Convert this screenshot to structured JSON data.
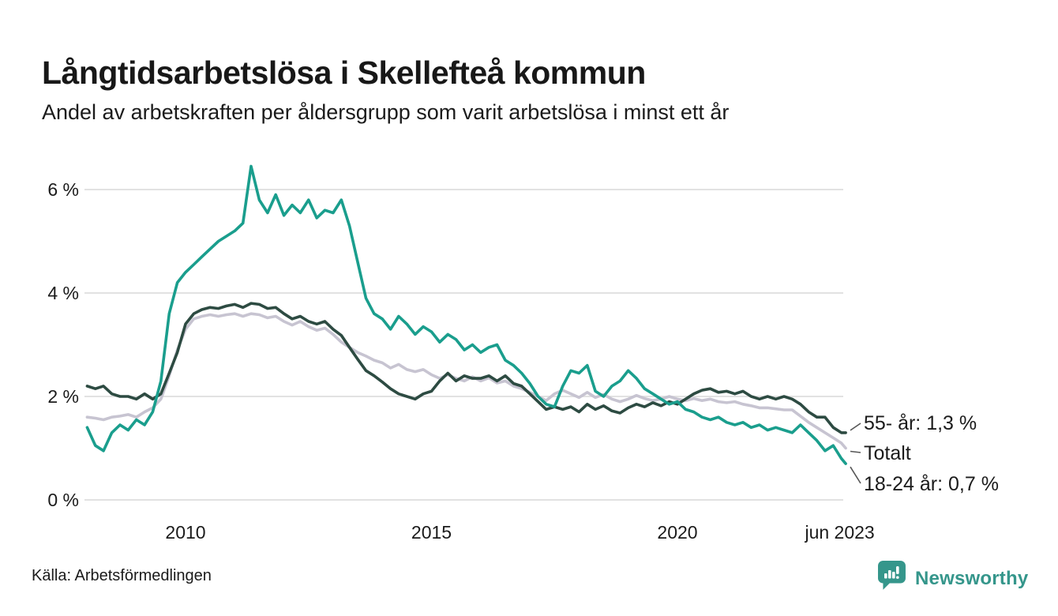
{
  "source": {
    "label": "Källa: Arbetsförmedlingen"
  },
  "logo": {
    "text": "Newsworthy"
  },
  "annotations": [
    {
      "series": "55- år",
      "label": "55- år: 1,3 %"
    },
    {
      "series": "Totalt",
      "label": "Totalt"
    },
    {
      "series": "18-24 år",
      "label": "18-24 år: 0,7 %"
    }
  ],
  "colors": {
    "teal_line": "#1a9e8d",
    "dark_line": "#2d4b42",
    "gray_line": "#c7c4d1",
    "gridline": "#e2e2e2",
    "connector": "#555555",
    "text": "#1b1b1b",
    "logo_teal": "#35968b"
  },
  "chart_data": {
    "type": "line",
    "title": "Långtidsarbetslösa i Skellefteå kommun",
    "subtitle": "Andel av arbetskraften per åldersgrupp som varit arbetslösa i minst ett år",
    "xlabel": "",
    "ylabel": "",
    "unit": "%",
    "grid": "horizontal",
    "legend_position": "end-of-line-labels",
    "ylim": [
      0,
      6.8
    ],
    "xlim": [
      2008.0,
      2023.42
    ],
    "y_ticks": [
      {
        "label": "6 %",
        "value": 6
      },
      {
        "label": "4 %",
        "value": 4
      },
      {
        "label": "2 %",
        "value": 2
      },
      {
        "label": "0 %",
        "value": 0
      }
    ],
    "x_ticks": [
      {
        "label": "2010",
        "value": 2010
      },
      {
        "label": "2015",
        "value": 2015
      },
      {
        "label": "2020",
        "value": 2020
      },
      {
        "label": "jun 2023",
        "value": 2023.3
      }
    ],
    "x": [
      2008.0,
      2008.167,
      2008.333,
      2008.5,
      2008.667,
      2008.833,
      2009.0,
      2009.167,
      2009.333,
      2009.5,
      2009.667,
      2009.833,
      2010.0,
      2010.167,
      2010.333,
      2010.5,
      2010.667,
      2010.833,
      2011.0,
      2011.167,
      2011.333,
      2011.5,
      2011.667,
      2011.833,
      2012.0,
      2012.167,
      2012.333,
      2012.5,
      2012.667,
      2012.833,
      2013.0,
      2013.167,
      2013.333,
      2013.5,
      2013.667,
      2013.833,
      2014.0,
      2014.167,
      2014.333,
      2014.5,
      2014.667,
      2014.833,
      2015.0,
      2015.167,
      2015.333,
      2015.5,
      2015.667,
      2015.833,
      2016.0,
      2016.167,
      2016.333,
      2016.5,
      2016.667,
      2016.833,
      2017.0,
      2017.167,
      2017.333,
      2017.5,
      2017.667,
      2017.833,
      2018.0,
      2018.167,
      2018.333,
      2018.5,
      2018.667,
      2018.833,
      2019.0,
      2019.167,
      2019.333,
      2019.5,
      2019.667,
      2019.833,
      2020.0,
      2020.167,
      2020.333,
      2020.5,
      2020.667,
      2020.833,
      2021.0,
      2021.167,
      2021.333,
      2021.5,
      2021.667,
      2021.833,
      2022.0,
      2022.167,
      2022.333,
      2022.5,
      2022.667,
      2022.833,
      2023.0,
      2023.167,
      2023.333,
      2023.42
    ],
    "series": [
      {
        "name": "18-24 år",
        "id": "18-24",
        "color": "#1a9e8d",
        "end_label": "18-24 år: 0,7 %",
        "end_value": 0.7,
        "values": [
          1.4,
          1.05,
          0.95,
          1.3,
          1.45,
          1.35,
          1.55,
          1.45,
          1.7,
          2.3,
          3.6,
          4.2,
          4.4,
          4.55,
          4.7,
          4.85,
          5.0,
          5.1,
          5.2,
          5.35,
          6.45,
          5.8,
          5.55,
          5.9,
          5.5,
          5.7,
          5.55,
          5.8,
          5.45,
          5.6,
          5.55,
          5.8,
          5.3,
          4.6,
          3.9,
          3.6,
          3.5,
          3.3,
          3.55,
          3.4,
          3.2,
          3.35,
          3.25,
          3.05,
          3.2,
          3.1,
          2.9,
          3.0,
          2.85,
          2.95,
          3.0,
          2.7,
          2.6,
          2.45,
          2.25,
          2.0,
          1.85,
          1.8,
          2.2,
          2.5,
          2.45,
          2.6,
          2.1,
          2.0,
          2.2,
          2.3,
          2.5,
          2.35,
          2.15,
          2.05,
          1.95,
          1.85,
          1.9,
          1.75,
          1.7,
          1.6,
          1.55,
          1.6,
          1.5,
          1.45,
          1.5,
          1.4,
          1.45,
          1.35,
          1.4,
          1.35,
          1.3,
          1.45,
          1.3,
          1.15,
          0.95,
          1.05,
          0.8,
          0.7
        ]
      },
      {
        "name": "Totalt",
        "id": "totalt",
        "color": "#c7c4d1",
        "end_label": "Totalt",
        "end_value": 1.0,
        "values": [
          1.6,
          1.58,
          1.55,
          1.6,
          1.62,
          1.65,
          1.6,
          1.7,
          1.78,
          1.95,
          2.4,
          2.9,
          3.3,
          3.5,
          3.55,
          3.58,
          3.55,
          3.58,
          3.6,
          3.55,
          3.6,
          3.58,
          3.52,
          3.55,
          3.45,
          3.38,
          3.45,
          3.35,
          3.28,
          3.32,
          3.2,
          3.05,
          2.95,
          2.85,
          2.78,
          2.7,
          2.65,
          2.55,
          2.62,
          2.52,
          2.48,
          2.52,
          2.42,
          2.35,
          2.42,
          2.35,
          2.3,
          2.38,
          2.3,
          2.36,
          2.26,
          2.3,
          2.2,
          2.15,
          2.08,
          2.0,
          1.92,
          2.05,
          2.12,
          2.05,
          1.98,
          2.08,
          1.98,
          2.04,
          1.95,
          1.9,
          1.95,
          2.02,
          1.96,
          1.92,
          1.95,
          2.0,
          1.95,
          1.92,
          1.96,
          1.92,
          1.95,
          1.9,
          1.88,
          1.9,
          1.85,
          1.82,
          1.78,
          1.78,
          1.76,
          1.74,
          1.74,
          1.62,
          1.5,
          1.4,
          1.3,
          1.2,
          1.1,
          1.0
        ]
      },
      {
        "name": "55- år",
        "id": "55",
        "color": "#2d4b42",
        "end_label": "55- år: 1,3 %",
        "end_value": 1.3,
        "values": [
          2.2,
          2.15,
          2.2,
          2.05,
          2.0,
          2.0,
          1.95,
          2.05,
          1.95,
          2.05,
          2.45,
          2.85,
          3.4,
          3.6,
          3.68,
          3.72,
          3.7,
          3.75,
          3.78,
          3.72,
          3.8,
          3.78,
          3.7,
          3.72,
          3.6,
          3.5,
          3.55,
          3.45,
          3.4,
          3.45,
          3.3,
          3.18,
          2.95,
          2.72,
          2.5,
          2.4,
          2.28,
          2.15,
          2.05,
          2.0,
          1.95,
          2.05,
          2.1,
          2.3,
          2.45,
          2.3,
          2.4,
          2.35,
          2.35,
          2.4,
          2.3,
          2.4,
          2.25,
          2.2,
          2.05,
          1.9,
          1.75,
          1.8,
          1.75,
          1.8,
          1.7,
          1.85,
          1.75,
          1.82,
          1.72,
          1.68,
          1.78,
          1.85,
          1.8,
          1.88,
          1.82,
          1.9,
          1.85,
          1.95,
          2.05,
          2.12,
          2.15,
          2.08,
          2.1,
          2.05,
          2.1,
          2.0,
          1.95,
          2.0,
          1.95,
          2.0,
          1.95,
          1.85,
          1.7,
          1.6,
          1.6,
          1.4,
          1.3,
          1.3
        ]
      }
    ]
  }
}
